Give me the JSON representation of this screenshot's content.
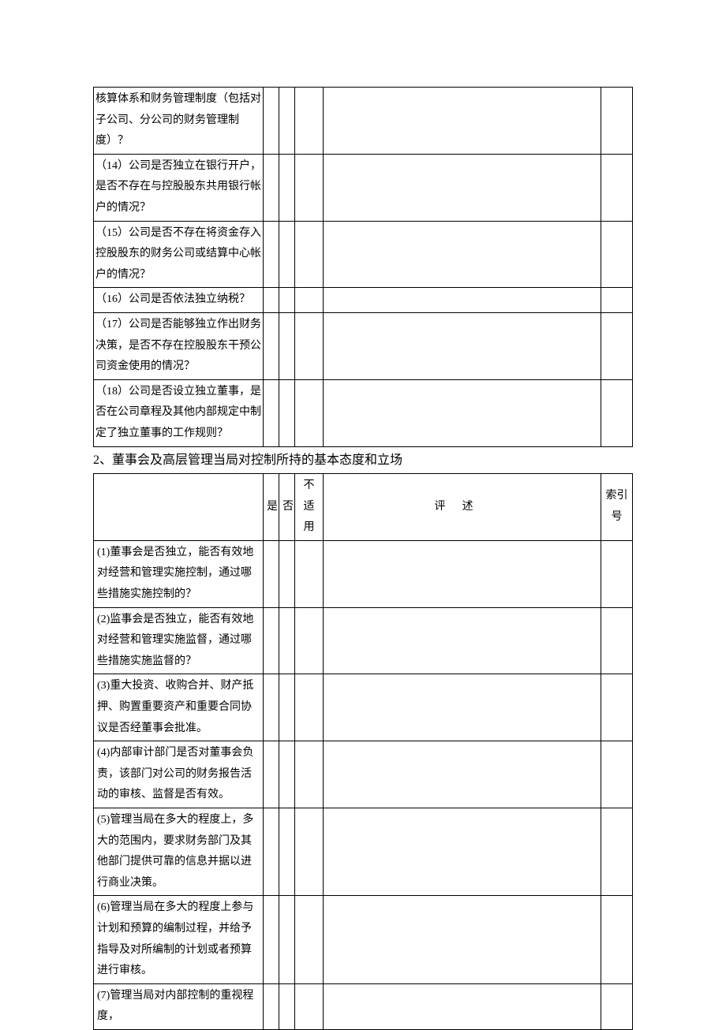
{
  "table1": {
    "rows": [
      {
        "q": "核算体系和财务管理制度（包括对子公司、分公司的财务管理制度）？"
      },
      {
        "q": "（14）公司是否独立在银行开户，是否不存在与控股股东共用银行帐户的情况？"
      },
      {
        "q": "（15）公司是否不存在将资金存入控股股东的财务公司或结算中心帐户的情况？"
      },
      {
        "q": "（16）公司是否依法独立纳税？"
      },
      {
        "q": "（17）公司是否能够独立作出财务决策，是否不存在控股股东干预公司资金使用的情况？"
      },
      {
        "q": "（18）公司是否设立独立董事，是否在公司章程及其他内部规定中制定了独立董事的工作规则？"
      }
    ]
  },
  "section_title": "2、董事会及高层管理当局对控制所持的基本态度和立场",
  "table2": {
    "headers": {
      "q": "",
      "yes": "是",
      "no": "否",
      "na": "不适用",
      "review": "评述",
      "index": "索引号"
    },
    "rows": [
      {
        "q": "(1)董事会是否独立，能否有效地对经营和管理实施控制，通过哪些措施实施控制的？"
      },
      {
        "q": "(2)监事会是否独立，能否有效地对经营和管理实施监督，通过哪些措施实施监督的？"
      },
      {
        "q": "(3)重大投资、收购合并、财产抵押、购置重要资产和重要合同协议是否经董事会批准。"
      },
      {
        "q": "(4)内部审计部门是否对董事会负责，该部门对公司的财务报告活动的审核、监督是否有效。"
      },
      {
        "q": "(5)管理当局在多大的程度上，多大的范围内，要求财务部门及其他部门提供可靠的信息并据以进行商业决策。"
      },
      {
        "q": "(6)管理当局在多大的程度上参与计划和预算的编制过程，并给予指导及对所编制的计划或者预算进行审核。"
      },
      {
        "q": "(7)管理当局对内部控制的重视程度，"
      }
    ]
  }
}
